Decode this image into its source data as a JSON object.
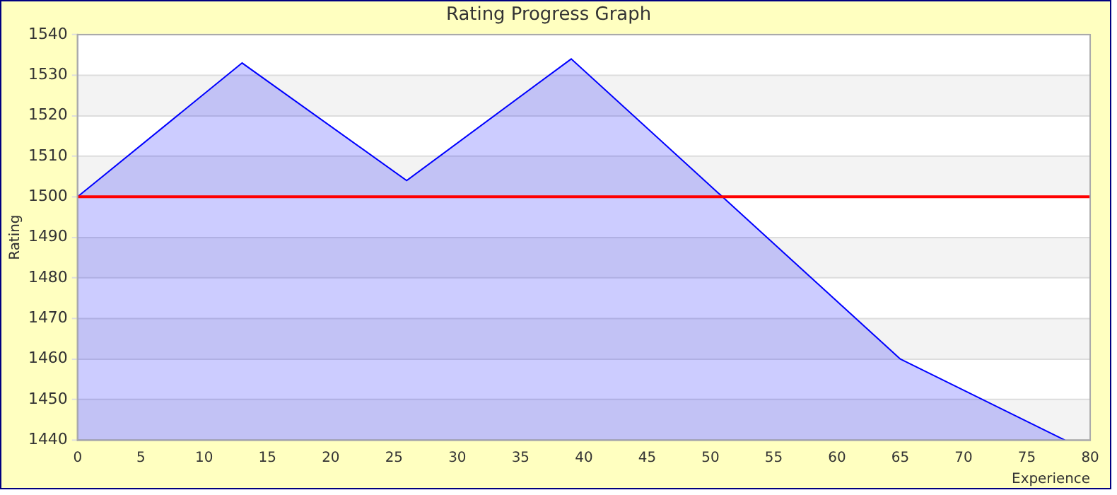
{
  "chart_data": {
    "type": "area",
    "title": "Rating Progress Graph",
    "xlabel": "Experience",
    "ylabel": "Rating",
    "x": [
      0,
      13,
      26,
      39,
      52,
      65,
      78
    ],
    "series": [
      {
        "color": "#0000ff",
        "values": [
          1500,
          1533,
          1504,
          1534,
          1497,
          1460,
          1440
        ]
      }
    ],
    "xlim": [
      0,
      80
    ],
    "xticks": [
      0,
      5,
      10,
      15,
      20,
      25,
      30,
      35,
      40,
      45,
      50,
      55,
      60,
      65,
      70,
      75,
      80
    ],
    "ylim": [
      1440,
      1540
    ],
    "yticks": [
      1440,
      1450,
      1460,
      1470,
      1480,
      1490,
      1500,
      1510,
      1520,
      1530,
      1540
    ],
    "ref_lines": [
      {
        "axis": "y",
        "value": 1500,
        "color": "#ff0000"
      }
    ],
    "grid": "y",
    "legend": false
  }
}
